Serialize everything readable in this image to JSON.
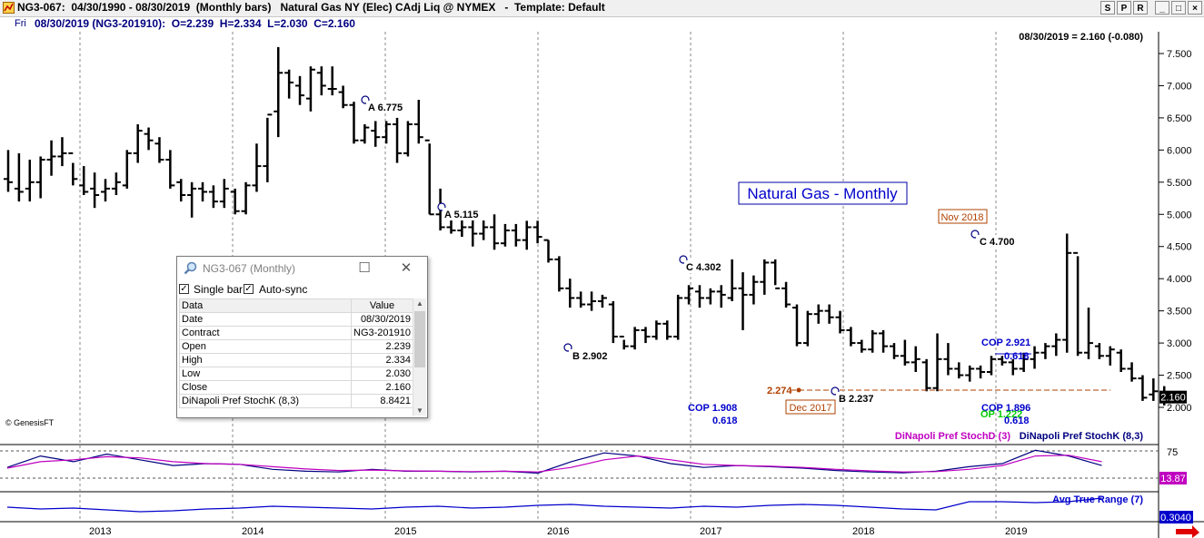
{
  "window": {
    "title": "NG3-067:  04/30/1990 - 08/30/2019  (Monthly bars)   Natural Gas NY (Elec) CAdj Liq @ NYMEX   -  Template: Default",
    "buttons": [
      "S",
      "P",
      "R",
      "_",
      "□",
      "×"
    ]
  },
  "infobar": {
    "day": "Fri",
    "text": "08/30/2019 (NG3-201910):  O=2.239  H=2.334  L=2.030  C=2.160"
  },
  "chart": {
    "last_readout": "08/30/2019 = 2.160 (-0.080)",
    "watermark": "© GenesisFT",
    "title_box": "Natural Gas - Monthly",
    "price_ticks": [
      "7.500",
      "7.000",
      "6.500",
      "6.000",
      "5.500",
      "5.000",
      "4.500",
      "4.000",
      "3.500",
      "3.000",
      "2.500",
      "2.000"
    ],
    "last_price_label": "2.160",
    "year_labels": [
      "2013",
      "2014",
      "2015",
      "2016",
      "2017",
      "2018",
      "2019"
    ],
    "annotations": {
      "a1": "A 6.775",
      "a2": "A 5.115",
      "b1": "B 2.902",
      "c1": "C 4.302",
      "c2": "C 4.700",
      "b2": "B 2.237",
      "nov": "Nov 2018",
      "dec": "Dec 2017",
      "level": "2.274",
      "cop1": "COP 1.908",
      "cop1r": "0.618",
      "cop2": "COP 1.896",
      "cop2r": "0.618",
      "op2": "OP 1.222",
      "cop3": "COP 2.921",
      "cop3r": "0.618"
    },
    "stoch": {
      "label_d": "DiNapoli Pref StochD (3)",
      "label_k": "DiNapoli Pref StochK (8,3)",
      "level": "75",
      "last": "13.87",
      "color_k": "#000080",
      "color_d": "#c000c0"
    },
    "atr": {
      "label": "Avg True Range (7)",
      "last": "0.3040",
      "color": "#0000cc"
    }
  },
  "chart_data": {
    "type": "bar",
    "subtype": "ohlc",
    "title": "Natural Gas - Monthly",
    "period": "monthly",
    "ylim": [
      1.9,
      7.7
    ],
    "y_ticks": [
      2.0,
      2.5,
      3.0,
      3.5,
      4.0,
      4.5,
      5.0,
      5.5,
      6.0,
      6.5,
      7.0,
      7.5
    ],
    "x_years": [
      "2013",
      "2014",
      "2015",
      "2016",
      "2017",
      "2018",
      "2019"
    ],
    "bars": [
      [
        5.55,
        6.0,
        5.35,
        5.5
      ],
      [
        5.4,
        5.95,
        5.2,
        5.35
      ],
      [
        5.4,
        5.85,
        5.2,
        5.5
      ],
      [
        5.5,
        5.9,
        5.25,
        5.85
      ],
      [
        5.85,
        6.15,
        5.6,
        5.9
      ],
      [
        5.9,
        6.2,
        5.75,
        5.95
      ],
      [
        5.95,
        5.8,
        5.45,
        5.55
      ],
      [
        5.45,
        5.75,
        5.3,
        5.35
      ],
      [
        5.4,
        5.65,
        5.1,
        5.3
      ],
      [
        5.35,
        5.55,
        5.2,
        5.4
      ],
      [
        5.4,
        5.65,
        5.3,
        5.5
      ],
      [
        5.45,
        6.0,
        5.4,
        5.95
      ],
      [
        5.95,
        6.4,
        5.8,
        6.3
      ],
      [
        6.25,
        6.35,
        6.0,
        6.15
      ],
      [
        6.1,
        6.2,
        5.8,
        5.85
      ],
      [
        5.85,
        6.0,
        5.4,
        5.45
      ],
      [
        5.5,
        5.55,
        5.2,
        5.3
      ],
      [
        5.3,
        5.5,
        4.95,
        5.4
      ],
      [
        5.4,
        5.5,
        5.2,
        5.35
      ],
      [
        5.35,
        5.45,
        5.1,
        5.2
      ],
      [
        5.2,
        5.55,
        5.1,
        5.4
      ],
      [
        5.35,
        5.4,
        5.0,
        5.05
      ],
      [
        5.05,
        5.5,
        5.0,
        5.45
      ],
      [
        5.45,
        6.1,
        5.35,
        5.75
      ],
      [
        5.75,
        6.5,
        5.5,
        6.55
      ],
      [
        6.6,
        7.6,
        6.2,
        7.2
      ],
      [
        7.2,
        7.25,
        6.8,
        7.05
      ],
      [
        7.0,
        7.15,
        6.7,
        6.85
      ],
      [
        6.8,
        7.3,
        6.6,
        7.25
      ],
      [
        7.2,
        7.3,
        6.85,
        7.0
      ],
      [
        6.95,
        7.3,
        6.85,
        6.95
      ],
      [
        6.9,
        7.0,
        6.65,
        6.7
      ],
      [
        6.7,
        6.75,
        6.1,
        6.15
      ],
      [
        6.15,
        6.4,
        6.1,
        6.35
      ],
      [
        6.3,
        6.45,
        6.05,
        6.2
      ],
      [
        6.2,
        6.45,
        6.1,
        6.4
      ],
      [
        6.4,
        6.5,
        5.8,
        5.95
      ],
      [
        5.95,
        6.45,
        5.9,
        6.4
      ],
      [
        6.4,
        6.78,
        6.1,
        6.2
      ],
      [
        6.15,
        6.1,
        5.0,
        5.0
      ],
      [
        5.0,
        5.4,
        4.75,
        4.8
      ],
      [
        4.8,
        5.0,
        4.7,
        4.75
      ],
      [
        4.75,
        5.0,
        4.65,
        4.8
      ],
      [
        4.8,
        4.95,
        4.5,
        4.7
      ],
      [
        4.7,
        5.1,
        4.6,
        4.8
      ],
      [
        4.8,
        5.0,
        4.45,
        4.55
      ],
      [
        4.55,
        4.85,
        4.5,
        4.75
      ],
      [
        4.75,
        4.85,
        4.5,
        4.6
      ],
      [
        4.6,
        4.9,
        4.45,
        4.8
      ],
      [
        4.8,
        4.9,
        4.55,
        4.65
      ],
      [
        4.6,
        4.6,
        4.25,
        4.3
      ],
      [
        4.3,
        4.35,
        3.8,
        3.85
      ],
      [
        3.85,
        4.0,
        3.55,
        3.7
      ],
      [
        3.7,
        3.8,
        3.55,
        3.6
      ],
      [
        3.6,
        3.8,
        3.5,
        3.65
      ],
      [
        3.65,
        3.75,
        3.55,
        3.7
      ],
      [
        3.6,
        3.65,
        3.0,
        3.1
      ],
      [
        3.1,
        3.05,
        2.9,
        2.95
      ],
      [
        2.95,
        3.25,
        2.9,
        3.2
      ],
      [
        3.2,
        3.25,
        3.0,
        3.1
      ],
      [
        3.1,
        3.35,
        3.05,
        3.3
      ],
      [
        3.3,
        3.35,
        3.05,
        3.1
      ],
      [
        3.1,
        3.75,
        3.05,
        3.7
      ],
      [
        3.7,
        3.9,
        3.6,
        3.85
      ],
      [
        3.8,
        3.9,
        3.55,
        3.7
      ],
      [
        3.7,
        3.85,
        3.6,
        3.8
      ],
      [
        3.8,
        3.9,
        3.55,
        3.75
      ],
      [
        3.7,
        4.3,
        3.65,
        3.85
      ],
      [
        3.85,
        4.1,
        3.2,
        3.75
      ],
      [
        3.75,
        4.05,
        3.6,
        3.95
      ],
      [
        3.95,
        4.3,
        3.75,
        4.25
      ],
      [
        4.25,
        4.3,
        3.9,
        3.85
      ],
      [
        3.85,
        3.95,
        3.55,
        3.6
      ],
      [
        3.55,
        3.6,
        2.95,
        3.0
      ],
      [
        3.0,
        3.5,
        2.95,
        3.45
      ],
      [
        3.45,
        3.6,
        3.3,
        3.5
      ],
      [
        3.5,
        3.6,
        3.3,
        3.4
      ],
      [
        3.4,
        3.5,
        3.15,
        3.2
      ],
      [
        3.2,
        3.25,
        2.95,
        3.0
      ],
      [
        3.0,
        3.05,
        2.85,
        2.9
      ],
      [
        2.9,
        3.2,
        2.85,
        3.15
      ],
      [
        3.15,
        3.2,
        2.85,
        2.95
      ],
      [
        2.95,
        3.0,
        2.75,
        2.8
      ],
      [
        2.8,
        3.05,
        2.65,
        2.7
      ],
      [
        2.7,
        2.95,
        2.55,
        2.75
      ],
      [
        2.7,
        2.75,
        2.25,
        2.3
      ],
      [
        2.3,
        3.15,
        2.25,
        2.75
      ],
      [
        2.75,
        3.0,
        2.5,
        2.6
      ],
      [
        2.6,
        2.7,
        2.45,
        2.5
      ],
      [
        2.5,
        2.65,
        2.4,
        2.6
      ],
      [
        2.6,
        2.65,
        2.45,
        2.55
      ],
      [
        2.55,
        2.8,
        2.5,
        2.75
      ],
      [
        2.75,
        2.8,
        2.65,
        2.7
      ],
      [
        2.7,
        2.75,
        2.5,
        2.6
      ],
      [
        2.6,
        2.85,
        2.55,
        2.75
      ],
      [
        2.75,
        2.95,
        2.6,
        2.85
      ],
      [
        2.85,
        3.0,
        2.75,
        2.95
      ],
      [
        2.95,
        3.15,
        2.8,
        3.05
      ],
      [
        3.05,
        4.7,
        2.85,
        4.4
      ],
      [
        4.4,
        4.35,
        2.8,
        2.85
      ],
      [
        2.85,
        3.55,
        2.75,
        3.0
      ],
      [
        2.95,
        3.0,
        2.75,
        2.8
      ],
      [
        2.8,
        2.95,
        2.65,
        2.9
      ],
      [
        2.85,
        2.9,
        2.55,
        2.6
      ],
      [
        2.6,
        2.7,
        2.4,
        2.45
      ],
      [
        2.45,
        2.5,
        2.1,
        2.15
      ],
      [
        2.2,
        2.45,
        2.1,
        2.25
      ],
      [
        2.24,
        2.33,
        2.03,
        2.16
      ]
    ]
  }
}
